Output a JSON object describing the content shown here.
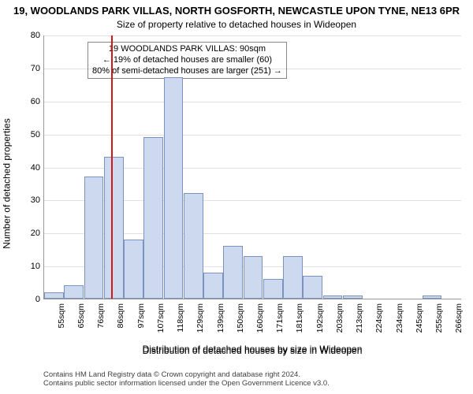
{
  "header": {
    "address": "19, WOODLANDS PARK VILLAS, NORTH GOSFORTH, NEWCASTLE UPON TYNE, NE13 6PR",
    "subtitle": "Size of property relative to detached houses in Wideopen"
  },
  "chart": {
    "type": "histogram",
    "y_axis_label": "Number of detached properties",
    "x_axis_label": "Distribution of detached houses by size in Wideopen",
    "ylim": [
      0,
      80
    ],
    "ytick_step": 10,
    "background_color": "#ffffff",
    "grid_color": "rgba(0,0,0,0.12)",
    "bar_fill": "#cdd9ee",
    "bar_border": "rgba(70,100,160,0.6)",
    "categories": [
      "55sqm",
      "65sqm",
      "76sqm",
      "86sqm",
      "97sqm",
      "107sqm",
      "118sqm",
      "129sqm",
      "139sqm",
      "150sqm",
      "160sqm",
      "171sqm",
      "181sqm",
      "192sqm",
      "203sqm",
      "213sqm",
      "224sqm",
      "234sqm",
      "245sqm",
      "255sqm",
      "266sqm"
    ],
    "values": [
      2,
      4,
      37,
      43,
      18,
      49,
      67,
      32,
      8,
      16,
      13,
      6,
      13,
      7,
      1,
      1,
      0,
      0,
      0,
      1,
      0
    ],
    "reference_line": {
      "position_category_index": 3,
      "fraction_within_bin": 0.35,
      "color": "#d01818",
      "width": 2
    },
    "annotation": {
      "lines": [
        "19 WOODLANDS PARK VILLAS: 90sqm",
        "← 19% of detached houses are smaller (60)",
        "80% of semi-detached houses are larger (251) →"
      ],
      "fontsize": 11
    }
  },
  "footer": {
    "line1": "Contains HM Land Registry data © Crown copyright and database right 2024.",
    "line2": "Contains public sector information licensed under the Open Government Licence v3.0."
  }
}
